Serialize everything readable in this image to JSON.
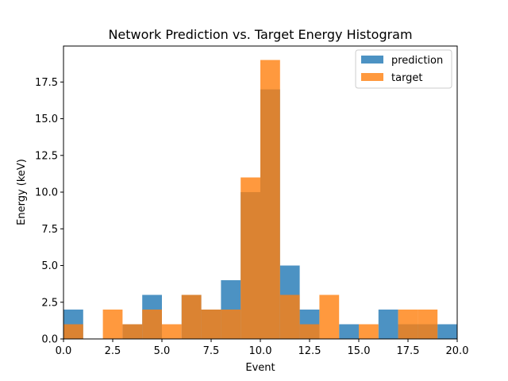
{
  "chart_data": {
    "type": "bar",
    "title": "Network Prediction vs. Target Energy Histogram",
    "xlabel": "Event",
    "ylabel": "Energy (keV)",
    "xlim": [
      0,
      20
    ],
    "ylim": [
      0,
      19.95
    ],
    "xticks": [
      "0.0",
      "2.5",
      "5.0",
      "7.5",
      "10.0",
      "12.5",
      "15.0",
      "17.5",
      "20.0"
    ],
    "yticks": [
      "0.0",
      "2.5",
      "5.0",
      "7.5",
      "10.0",
      "12.5",
      "15.0",
      "17.5"
    ],
    "grid": false,
    "legend_position": "top-right",
    "bin_edges": [
      0,
      1,
      2,
      3,
      4,
      5,
      6,
      7,
      8,
      9,
      10,
      11,
      12,
      13,
      14,
      15,
      16,
      17,
      18,
      19,
      20
    ],
    "series": [
      {
        "name": "prediction",
        "color": "#1f77b4",
        "values": [
          2,
          0,
          0,
          1,
          3,
          0,
          3,
          2,
          4,
          10,
          17,
          5,
          2,
          0,
          1,
          0,
          2,
          1,
          1,
          1
        ]
      },
      {
        "name": "target",
        "color": "#ff7f0e",
        "values": [
          1,
          0,
          2,
          1,
          2,
          1,
          3,
          2,
          2,
          11,
          19,
          3,
          1,
          3,
          0,
          1,
          0,
          2,
          2,
          0
        ]
      }
    ]
  }
}
